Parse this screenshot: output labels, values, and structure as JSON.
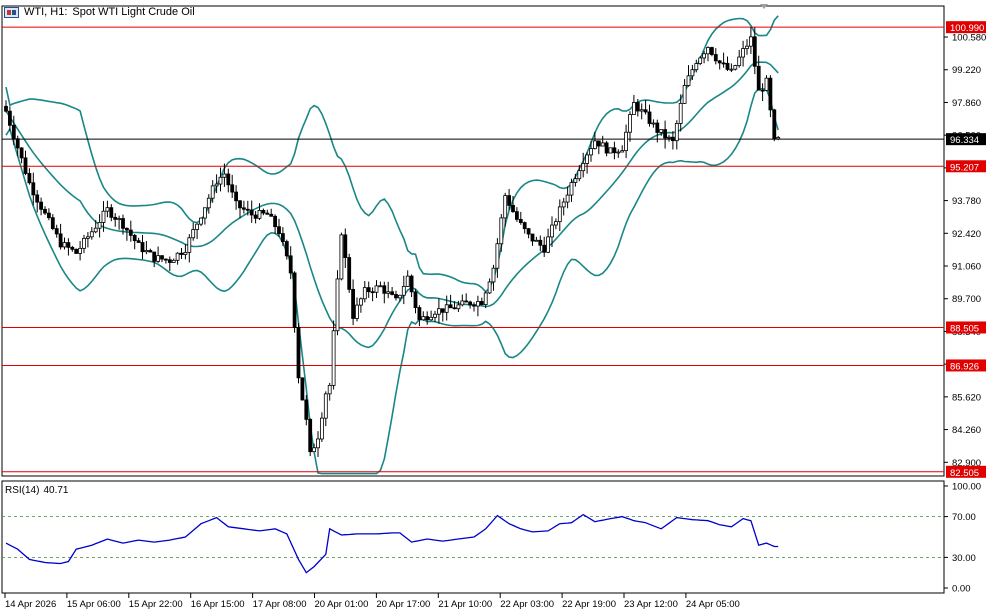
{
  "header": {
    "symbol": "WTI, H1:",
    "description": "Spot WTI Light Crude Oil"
  },
  "rsi": {
    "name": "RSI(14)",
    "value": "40.71",
    "axis": [
      "100.00",
      "70.00",
      "30.00",
      "0.00"
    ],
    "levels": [
      70,
      30
    ],
    "color": "#0000cc"
  },
  "chart_data": {
    "type": "candlestick",
    "price_axis_labels": [
      "100.580",
      "99.220",
      "97.860",
      "96.500",
      "95.140",
      "93.780",
      "92.420",
      "91.060",
      "89.700",
      "88.340",
      "86.980",
      "85.620",
      "84.260",
      "82.900"
    ],
    "ylim": [
      82.33,
      101.87
    ],
    "time_labels": [
      "14 Apr 2026",
      "15 Apr 06:00",
      "15 Apr 22:00",
      "16 Apr 15:00",
      "17 Apr 08:00",
      "20 Apr 01:00",
      "20 Apr 17:00",
      "21 Apr 10:00",
      "22 Apr 03:00",
      "22 Apr 19:00",
      "23 Apr 12:00",
      "24 Apr 05:00"
    ],
    "horizontal_levels": [
      {
        "label": "100.990",
        "value": 100.99,
        "color": "#e00000"
      },
      {
        "label": "95.207",
        "value": 95.207,
        "color": "#e00000"
      },
      {
        "label": "88.505",
        "value": 88.505,
        "color": "#e00000"
      },
      {
        "label": "86.926",
        "value": 86.926,
        "color": "#e00000"
      },
      {
        "label": "82.505",
        "value": 82.505,
        "color": "#e00000"
      }
    ],
    "current_price": {
      "label": "96.334",
      "value": 96.334
    },
    "price_anchors": [
      [
        0,
        97.5
      ],
      [
        3,
        96.0
      ],
      [
        6,
        94.5
      ],
      [
        10,
        93.2
      ],
      [
        14,
        92.0
      ],
      [
        18,
        91.6
      ],
      [
        22,
        92.5
      ],
      [
        26,
        93.4
      ],
      [
        30,
        92.8
      ],
      [
        34,
        91.9
      ],
      [
        38,
        91.4
      ],
      [
        42,
        91.3
      ],
      [
        46,
        91.8
      ],
      [
        50,
        93.2
      ],
      [
        54,
        94.6
      ],
      [
        56,
        94.9
      ],
      [
        59,
        93.6
      ],
      [
        63,
        93.2
      ],
      [
        67,
        93.2
      ],
      [
        70,
        92.5
      ],
      [
        73,
        90.8
      ],
      [
        75,
        86.5
      ],
      [
        77,
        84.6
      ],
      [
        78,
        83.2
      ],
      [
        80,
        84.0
      ],
      [
        82,
        85.8
      ],
      [
        83,
        86.1
      ],
      [
        86,
        92.5
      ],
      [
        89,
        89.0
      ],
      [
        92,
        90.0
      ],
      [
        96,
        90.2
      ],
      [
        100,
        89.6
      ],
      [
        103,
        90.6
      ],
      [
        106,
        88.8
      ],
      [
        110,
        89.2
      ],
      [
        114,
        89.3
      ],
      [
        118,
        89.5
      ],
      [
        122,
        89.6
      ],
      [
        125,
        91.0
      ],
      [
        128,
        94.0
      ],
      [
        131,
        93.0
      ],
      [
        134,
        92.3
      ],
      [
        138,
        91.8
      ],
      [
        141,
        93.0
      ],
      [
        145,
        94.5
      ],
      [
        148,
        95.5
      ],
      [
        151,
        96.3
      ],
      [
        155,
        95.8
      ],
      [
        158,
        96.0
      ],
      [
        161,
        97.8
      ],
      [
        164,
        97.3
      ],
      [
        167,
        96.7
      ],
      [
        171,
        96.2
      ],
      [
        174,
        98.5
      ],
      [
        177,
        99.6
      ],
      [
        180,
        100.2
      ],
      [
        183,
        99.5
      ],
      [
        186,
        99.1
      ],
      [
        189,
        100.0
      ],
      [
        191,
        100.5
      ],
      [
        193,
        98.3
      ],
      [
        195,
        98.7
      ],
      [
        197,
        96.2
      ],
      [
        198,
        96.3
      ]
    ],
    "rsi_values": [
      [
        0,
        44
      ],
      [
        3,
        38
      ],
      [
        6,
        28
      ],
      [
        10,
        25
      ],
      [
        14,
        24
      ],
      [
        16,
        26
      ],
      [
        18,
        38
      ],
      [
        22,
        42
      ],
      [
        26,
        48
      ],
      [
        30,
        44
      ],
      [
        34,
        47
      ],
      [
        38,
        45
      ],
      [
        42,
        47
      ],
      [
        46,
        50
      ],
      [
        50,
        63
      ],
      [
        54,
        69
      ],
      [
        57,
        60
      ],
      [
        61,
        58
      ],
      [
        65,
        56
      ],
      [
        69,
        58
      ],
      [
        72,
        53
      ],
      [
        75,
        28
      ],
      [
        77,
        15
      ],
      [
        79,
        21
      ],
      [
        82,
        33
      ],
      [
        83,
        58
      ],
      [
        86,
        52
      ],
      [
        90,
        53
      ],
      [
        95,
        53
      ],
      [
        99,
        54
      ],
      [
        101,
        54
      ],
      [
        104,
        45
      ],
      [
        108,
        48
      ],
      [
        112,
        46
      ],
      [
        116,
        48
      ],
      [
        120,
        50
      ],
      [
        123,
        58
      ],
      [
        126,
        71
      ],
      [
        129,
        63
      ],
      [
        132,
        58
      ],
      [
        135,
        55
      ],
      [
        139,
        56
      ],
      [
        142,
        63
      ],
      [
        145,
        64
      ],
      [
        148,
        72
      ],
      [
        151,
        65
      ],
      [
        155,
        68
      ],
      [
        158,
        70
      ],
      [
        161,
        66
      ],
      [
        164,
        64
      ],
      [
        168,
        58
      ],
      [
        172,
        69
      ],
      [
        176,
        67
      ],
      [
        180,
        66
      ],
      [
        183,
        62
      ],
      [
        186,
        60
      ],
      [
        189,
        68
      ],
      [
        191,
        66
      ],
      [
        193,
        42
      ],
      [
        195,
        44
      ],
      [
        197,
        40.7
      ]
    ]
  },
  "colors": {
    "bull": "#ffffff",
    "bear": "#000000",
    "band": "#1a8787",
    "level": "#e00000",
    "rsi": "#0000cc"
  }
}
